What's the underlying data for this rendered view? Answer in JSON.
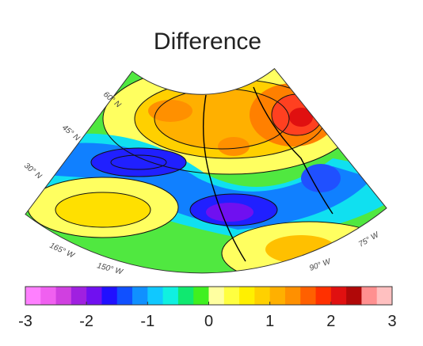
{
  "title": "Difference",
  "lat_labels": [
    "60° N",
    "45° N",
    "30° N"
  ],
  "lon_labels": [
    "165° W",
    "150° W",
    "90° W",
    "75° W"
  ],
  "colorbar": {
    "lim": [
      -3,
      3
    ],
    "ticks": [
      -3,
      -2,
      -1,
      0,
      1,
      2,
      3
    ],
    "colors": [
      "#ff80ff",
      "#f060f0",
      "#d040e0",
      "#a020e0",
      "#7010f0",
      "#2010ff",
      "#1050ff",
      "#1090ff",
      "#10c8ff",
      "#10f0e0",
      "#10e870",
      "#40f020",
      "#ffffa0",
      "#ffff40",
      "#fff000",
      "#ffd000",
      "#ffb000",
      "#ff9000",
      "#ff6000",
      "#ff3000",
      "#e01010",
      "#b00808",
      "#ff9090",
      "#ffc0c0"
    ]
  }
}
